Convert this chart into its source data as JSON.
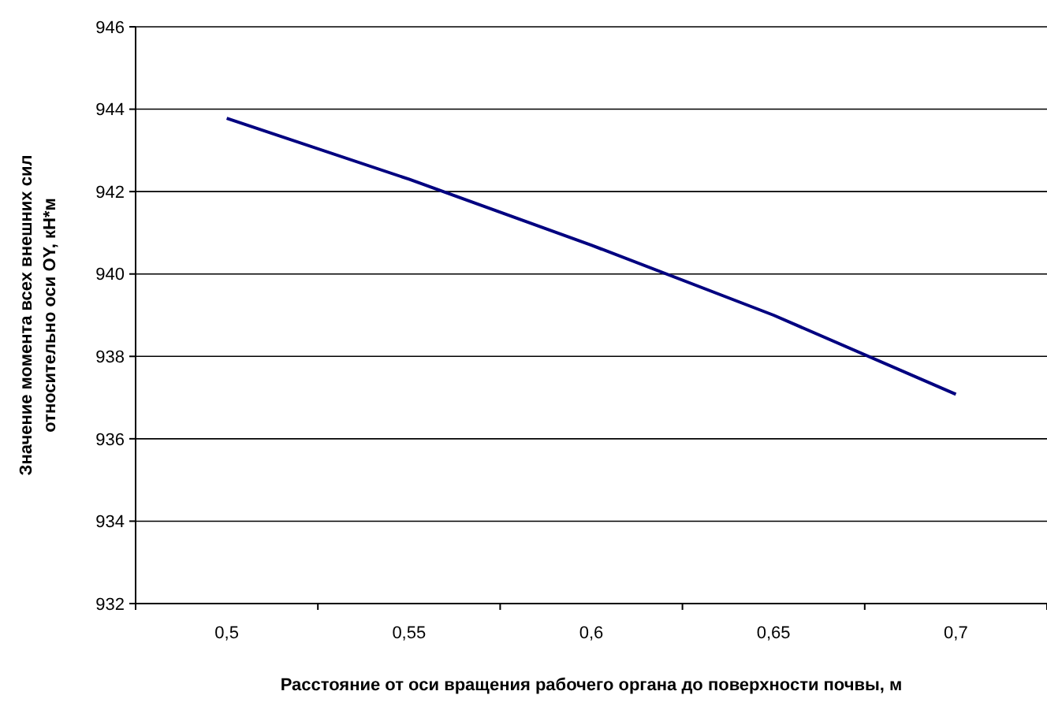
{
  "chart_data": {
    "type": "line",
    "xlabel": "Расстояние от оси вращения рабочего органа до поверхности почвы, м",
    "ylabel": "Значение момента всех внешних сил\nотносительно оси OY, кН*м",
    "categories": [
      "0,5",
      "0,55",
      "0,6",
      "0,65",
      "0,7"
    ],
    "series": [
      {
        "color": "#000080",
        "values": [
          943.78,
          942.3,
          940.7,
          939.0,
          937.08
        ]
      }
    ],
    "ylim": [
      932,
      946
    ],
    "yticks": [
      932,
      934,
      936,
      938,
      940,
      942,
      944,
      946
    ],
    "grid": "y",
    "marker": "none",
    "line_style": "solid"
  }
}
